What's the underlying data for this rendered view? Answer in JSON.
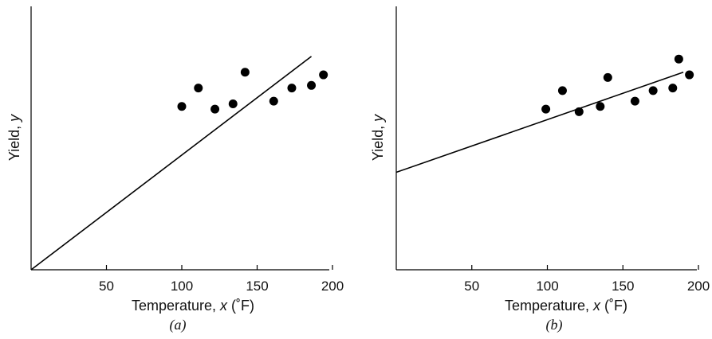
{
  "chart_data": [
    {
      "type": "scatter",
      "panel_label": "(a)",
      "xlabel": {
        "prefix": "Temperature, ",
        "var": "x",
        "suffix": " (˚F)"
      },
      "ylabel": {
        "prefix": "Yield, ",
        "var": "y"
      },
      "x_ticks": [
        50,
        100,
        150,
        200
      ],
      "x_tick_labels": [
        "50",
        "100",
        "150",
        "200"
      ],
      "y_ticks_labeled": false,
      "xlim": [
        0,
        200
      ],
      "ylim": [
        0,
        100
      ],
      "grid": false,
      "points": [
        {
          "x": 100,
          "y": 62
        },
        {
          "x": 111,
          "y": 69
        },
        {
          "x": 122,
          "y": 61
        },
        {
          "x": 134,
          "y": 63
        },
        {
          "x": 142,
          "y": 75
        },
        {
          "x": 161,
          "y": 64
        },
        {
          "x": 173,
          "y": 69
        },
        {
          "x": 186,
          "y": 70
        },
        {
          "x": 194,
          "y": 74
        }
      ],
      "fit_line": {
        "x": [
          0,
          186
        ],
        "y": [
          0,
          81
        ]
      }
    },
    {
      "type": "scatter",
      "panel_label": "(b)",
      "xlabel": {
        "prefix": "Temperature, ",
        "var": "x",
        "suffix": " (˚F)"
      },
      "ylabel": {
        "prefix": "Yield, ",
        "var": "y"
      },
      "x_ticks": [
        50,
        100,
        150,
        200
      ],
      "x_tick_labels": [
        "50",
        "100",
        "150",
        "200"
      ],
      "y_ticks_labeled": false,
      "xlim": [
        0,
        200
      ],
      "ylim": [
        0,
        100
      ],
      "grid": false,
      "points": [
        {
          "x": 99,
          "y": 61
        },
        {
          "x": 110,
          "y": 68
        },
        {
          "x": 121,
          "y": 60
        },
        {
          "x": 135,
          "y": 62
        },
        {
          "x": 140,
          "y": 73
        },
        {
          "x": 158,
          "y": 64
        },
        {
          "x": 170,
          "y": 68
        },
        {
          "x": 183,
          "y": 69
        },
        {
          "x": 187,
          "y": 80
        },
        {
          "x": 194,
          "y": 74
        }
      ],
      "fit_line": {
        "x": [
          0,
          190
        ],
        "y": [
          37,
          75
        ]
      }
    }
  ]
}
